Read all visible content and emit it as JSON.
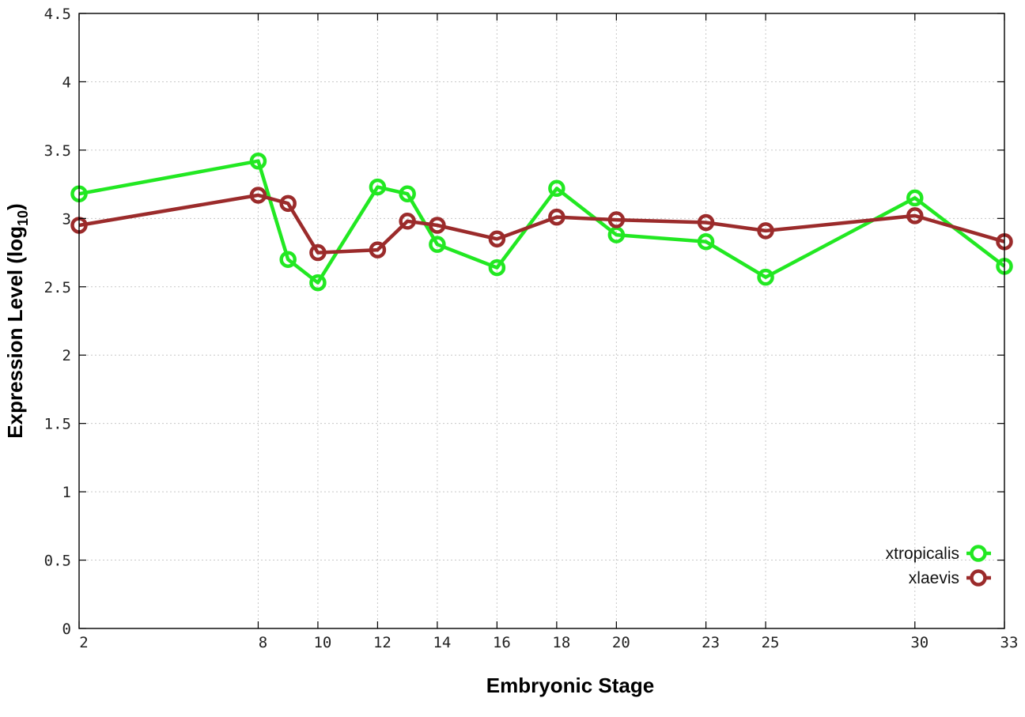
{
  "chart_data": {
    "type": "line",
    "xlabel": "Embryonic Stage",
    "ylabel_main": "Expression Level (log",
    "ylabel_sub": "10",
    "ylabel_close": ")",
    "xlim": [
      2,
      33
    ],
    "ylim": [
      0,
      4.5
    ],
    "x_ticks": [
      2,
      8,
      10,
      12,
      14,
      16,
      18,
      20,
      23,
      25,
      30,
      33
    ],
    "x_tick_labels": [
      "2",
      "8",
      "10",
      "12",
      "14",
      "16",
      "18",
      "20",
      "23",
      "25",
      "30",
      "33"
    ],
    "y_ticks": [
      0,
      0.5,
      1,
      1.5,
      2,
      2.5,
      3,
      3.5,
      4,
      4.5
    ],
    "y_tick_labels": [
      "0",
      "0.5",
      "1",
      "1.5",
      "2",
      "2.5",
      "3",
      "3.5",
      "4",
      "4.5"
    ],
    "grid": true,
    "legend_position": "bottom-right",
    "series": [
      {
        "name": "xtropicalis",
        "color": "#22e822",
        "x": [
          2,
          8,
          9,
          10,
          12,
          13,
          14,
          16,
          18,
          20,
          23,
          25,
          30,
          33
        ],
        "y": [
          3.18,
          3.42,
          2.7,
          2.53,
          3.23,
          3.18,
          2.81,
          2.64,
          3.22,
          2.88,
          2.83,
          2.57,
          3.15,
          2.65
        ]
      },
      {
        "name": "xlaevis",
        "color": "#9b2b2b",
        "x": [
          2,
          8,
          9,
          10,
          12,
          13,
          14,
          16,
          18,
          20,
          23,
          25,
          30,
          33
        ],
        "y": [
          2.95,
          3.17,
          3.11,
          2.75,
          2.77,
          2.98,
          2.95,
          2.85,
          3.01,
          2.99,
          2.97,
          2.91,
          3.02,
          2.83
        ]
      }
    ]
  }
}
